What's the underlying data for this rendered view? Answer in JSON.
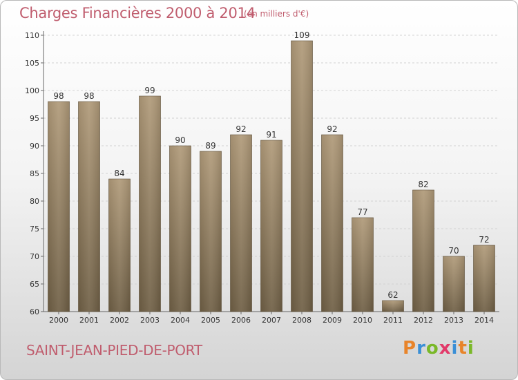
{
  "header": {
    "title": "Charges Financières 2000 à 2014",
    "unit": "(en milliers d'€)"
  },
  "footer": {
    "commune": "SAINT-JEAN-PIED-DE-PORT",
    "logo_text": "Proxiti",
    "logo_colors": [
      "#e8842a",
      "#3a8fd6",
      "#7ab828",
      "#e23a6a",
      "#3a8fd6",
      "#e8842a",
      "#7ab828"
    ]
  },
  "chart_data": {
    "type": "bar",
    "categories": [
      "2000",
      "2001",
      "2002",
      "2003",
      "2004",
      "2005",
      "2006",
      "2007",
      "2008",
      "2009",
      "2010",
      "2011",
      "2012",
      "2013",
      "2014"
    ],
    "values": [
      98,
      98,
      84,
      99,
      90,
      89,
      92,
      91,
      109,
      92,
      77,
      62,
      82,
      70,
      72
    ],
    "ylim": [
      60,
      110
    ],
    "yticks": [
      60,
      65,
      70,
      75,
      80,
      85,
      90,
      95,
      100,
      105,
      110
    ],
    "grid": true,
    "bar_color": "#8b7a5e"
  }
}
